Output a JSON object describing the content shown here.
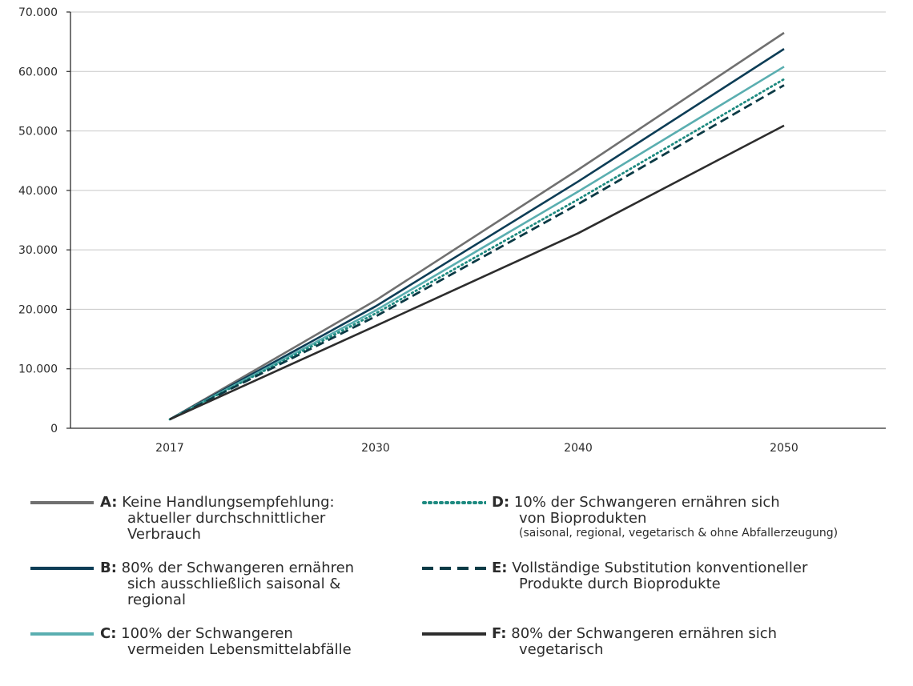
{
  "chart_data": {
    "type": "line",
    "title": "",
    "xlabel": "",
    "ylabel": "",
    "x": [
      "2017",
      "2030",
      "2040",
      "2050"
    ],
    "ylim": [
      0,
      70000
    ],
    "yticks": [
      "0",
      "10.000",
      "20.000",
      "30.000",
      "40.000",
      "50.000",
      "60.000",
      "70.000"
    ],
    "grid": "horizontal",
    "legend_position": "bottom",
    "series": [
      {
        "key": "A",
        "name": "Keine Handlungsempfehlung: aktueller durchschnittlicher Verbrauch",
        "values": [
          1500,
          21500,
          43500,
          66500
        ],
        "color": "#707070",
        "style": "solid"
      },
      {
        "key": "B",
        "name": "80% der Schwangeren ernähren sich ausschließlich saisonal & regional",
        "values": [
          1500,
          20500,
          41500,
          63800
        ],
        "color": "#0d3d56",
        "style": "solid"
      },
      {
        "key": "C",
        "name": "100% der Schwangeren vermeiden Lebensmittelabfälle",
        "values": [
          1500,
          19800,
          39800,
          60800
        ],
        "color": "#5aaeb0",
        "style": "solid"
      },
      {
        "key": "D",
        "name": "10% der Schwangeren ernähren sich von Bioprodukten (saisonal, regional, vegetarisch & ohne Abfallerzeugung)",
        "values": [
          1500,
          19300,
          38500,
          58700
        ],
        "color": "#1d8a80",
        "style": "dotted"
      },
      {
        "key": "E",
        "name": "Vollständige Substitution konventioneller Produkte durch Bioprodukte",
        "values": [
          1500,
          18800,
          37700,
          57700
        ],
        "color": "#0b3a45",
        "style": "dashed"
      },
      {
        "key": "F",
        "name": "80% der Schwangeren ernähren sich vegetarisch",
        "values": [
          1500,
          17200,
          32800,
          50900
        ],
        "color": "#2d2d2d",
        "style": "solid"
      }
    ]
  },
  "legend": [
    {
      "key": "A:",
      "lines": [
        "Keine Handlungsempfehlung:",
        "aktueller durchschnittlicher",
        "Verbrauch"
      ],
      "small": ""
    },
    {
      "key": "B:",
      "lines": [
        "80% der Schwangeren ernähren",
        "sich ausschließlich saisonal &",
        "regional"
      ],
      "small": ""
    },
    {
      "key": "C:",
      "lines": [
        "100% der Schwangeren",
        "vermeiden Lebensmittelabfälle"
      ],
      "small": ""
    },
    {
      "key": "D:",
      "lines": [
        "10% der Schwangeren ernähren sich",
        "von Bioprodukten"
      ],
      "small": "(saisonal, regional, vegetarisch & ohne Abfallerzeugung)"
    },
    {
      "key": "E:",
      "lines": [
        "Vollständige Substitution konventioneller",
        "Produkte durch Bioprodukte"
      ],
      "small": ""
    },
    {
      "key": "F:",
      "lines": [
        "80% der Schwangeren ernähren sich",
        "vegetarisch"
      ],
      "small": ""
    }
  ]
}
